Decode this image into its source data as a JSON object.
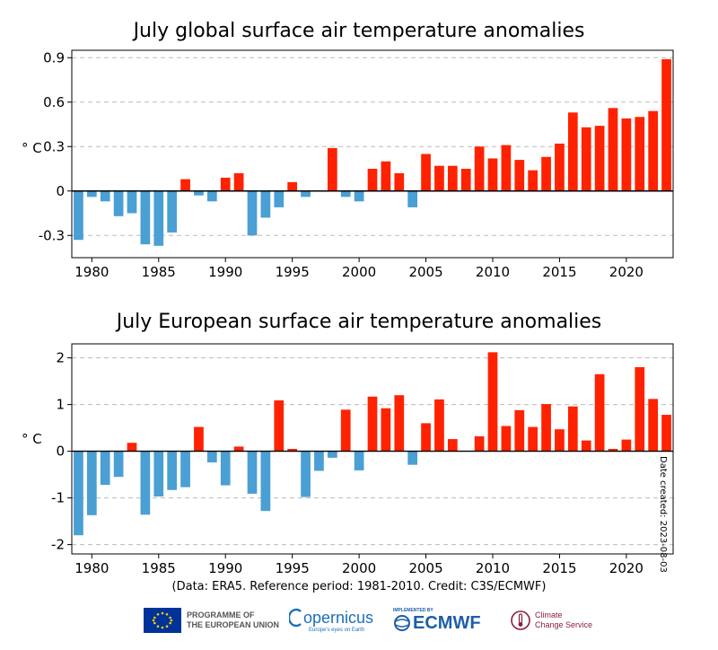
{
  "chart_data": [
    {
      "type": "bar",
      "title": "July global surface air temperature anomalies",
      "ylabel": "° C",
      "xlabel": "",
      "ylim": [
        -0.45,
        0.95
      ],
      "yticks": [
        -0.3,
        0,
        0.3,
        0.6,
        0.9
      ],
      "ytick_labels": [
        "-0.3",
        "0",
        "0.3",
        "0.6",
        "0.9"
      ],
      "xticks": [
        1980,
        1985,
        1990,
        1995,
        2000,
        2005,
        2010,
        2015,
        2020
      ],
      "xlim": [
        1978.5,
        2023.5
      ],
      "grid": true,
      "positive_color": "#ff2200",
      "negative_color": "#4a9fd4",
      "years": [
        1979,
        1980,
        1981,
        1982,
        1983,
        1984,
        1985,
        1986,
        1987,
        1988,
        1989,
        1990,
        1991,
        1992,
        1993,
        1994,
        1995,
        1996,
        1997,
        1998,
        1999,
        2000,
        2001,
        2002,
        2003,
        2004,
        2005,
        2006,
        2007,
        2008,
        2009,
        2010,
        2011,
        2012,
        2013,
        2014,
        2015,
        2016,
        2017,
        2018,
        2019,
        2020,
        2021,
        2022,
        2023
      ],
      "values": [
        -0.33,
        -0.04,
        -0.07,
        -0.17,
        -0.15,
        -0.36,
        -0.37,
        -0.28,
        0.08,
        -0.03,
        -0.07,
        0.09,
        0.12,
        -0.3,
        -0.18,
        -0.11,
        0.06,
        -0.04,
        0.0,
        0.29,
        -0.04,
        -0.07,
        0.15,
        0.2,
        0.12,
        -0.11,
        0.25,
        0.17,
        0.17,
        0.15,
        0.3,
        0.22,
        0.31,
        0.21,
        0.14,
        0.23,
        0.32,
        0.53,
        0.43,
        0.44,
        0.56,
        0.49,
        0.5,
        0.54,
        0.89
      ]
    },
    {
      "type": "bar",
      "title": "July European surface air temperature anomalies",
      "ylabel": "° C",
      "xlabel": "",
      "ylim": [
        -2.2,
        2.3
      ],
      "yticks": [
        -2,
        -1,
        0,
        1,
        2
      ],
      "ytick_labels": [
        "-2",
        "-1",
        "0",
        "1",
        "2"
      ],
      "xticks": [
        1980,
        1985,
        1990,
        1995,
        2000,
        2005,
        2010,
        2015,
        2020
      ],
      "xlim": [
        1978.5,
        2023.5
      ],
      "grid": true,
      "positive_color": "#ff2200",
      "negative_color": "#4a9fd4",
      "years": [
        1979,
        1980,
        1981,
        1982,
        1983,
        1984,
        1985,
        1986,
        1987,
        1988,
        1989,
        1990,
        1991,
        1992,
        1993,
        1994,
        1995,
        1996,
        1997,
        1998,
        1999,
        2000,
        2001,
        2002,
        2003,
        2004,
        2005,
        2006,
        2007,
        2008,
        2009,
        2010,
        2011,
        2012,
        2013,
        2014,
        2015,
        2016,
        2017,
        2018,
        2019,
        2020,
        2021,
        2022,
        2023
      ],
      "values": [
        -1.8,
        -1.37,
        -0.72,
        -0.55,
        0.18,
        -1.36,
        -0.97,
        -0.83,
        -0.77,
        0.52,
        -0.24,
        -0.73,
        0.1,
        -0.91,
        -1.28,
        1.09,
        0.05,
        -0.98,
        -0.42,
        -0.14,
        0.89,
        -0.41,
        1.17,
        0.92,
        1.2,
        -0.29,
        0.6,
        1.11,
        0.26,
        0.01,
        0.32,
        2.12,
        0.54,
        0.88,
        0.52,
        1.01,
        0.47,
        0.96,
        0.23,
        1.65,
        0.05,
        0.25,
        1.8,
        1.12,
        0.78
      ]
    }
  ],
  "footer": {
    "date_created": "Date created: 2023-08-03",
    "credit": "(Data: ERA5.  Reference period: 1981-2010.  Credit: C3S/ECMWF)",
    "eu_line1": "PROGRAMME OF",
    "eu_line2": "THE EUROPEAN UNION",
    "copernicus": "opernicus",
    "copernicus_sub": "Europe's eyes on Earth",
    "ecmwf_small": "IMPLEMENTED BY",
    "ecmwf": "ECMWF",
    "c3s_line1": "Climate",
    "c3s_line2": "Change Service",
    "colors": {
      "eu_blue": "#003399",
      "eu_star": "#ffcc00",
      "copernicus": "#1d6fb8",
      "ecmwf": "#1d5fa8",
      "c3s": "#8a1f3c"
    }
  }
}
